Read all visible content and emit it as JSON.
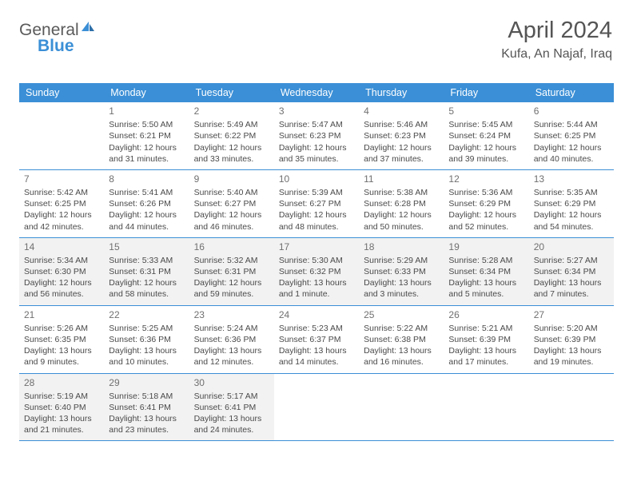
{
  "logo": {
    "text1": "General",
    "text2": "Blue"
  },
  "title": "April 2024",
  "location": "Kufa, An Najaf, Iraq",
  "colors": {
    "accent": "#3B8FD6",
    "shade": "#f2f2f2",
    "text": "#4a4a4a",
    "daynum": "#707070",
    "background": "#ffffff"
  },
  "fonts": {
    "title_size_pt": 22,
    "location_size_pt": 12,
    "header_size_pt": 9,
    "body_size_pt": 8,
    "daynum_size_pt": 9
  },
  "weekdays": [
    "Sunday",
    "Monday",
    "Tuesday",
    "Wednesday",
    "Thursday",
    "Friday",
    "Saturday"
  ],
  "days": {
    "1": {
      "sunrise": "Sunrise: 5:50 AM",
      "sunset": "Sunset: 6:21 PM",
      "daylight": "Daylight: 12 hours and 31 minutes."
    },
    "2": {
      "sunrise": "Sunrise: 5:49 AM",
      "sunset": "Sunset: 6:22 PM",
      "daylight": "Daylight: 12 hours and 33 minutes."
    },
    "3": {
      "sunrise": "Sunrise: 5:47 AM",
      "sunset": "Sunset: 6:23 PM",
      "daylight": "Daylight: 12 hours and 35 minutes."
    },
    "4": {
      "sunrise": "Sunrise: 5:46 AM",
      "sunset": "Sunset: 6:23 PM",
      "daylight": "Daylight: 12 hours and 37 minutes."
    },
    "5": {
      "sunrise": "Sunrise: 5:45 AM",
      "sunset": "Sunset: 6:24 PM",
      "daylight": "Daylight: 12 hours and 39 minutes."
    },
    "6": {
      "sunrise": "Sunrise: 5:44 AM",
      "sunset": "Sunset: 6:25 PM",
      "daylight": "Daylight: 12 hours and 40 minutes."
    },
    "7": {
      "sunrise": "Sunrise: 5:42 AM",
      "sunset": "Sunset: 6:25 PM",
      "daylight": "Daylight: 12 hours and 42 minutes."
    },
    "8": {
      "sunrise": "Sunrise: 5:41 AM",
      "sunset": "Sunset: 6:26 PM",
      "daylight": "Daylight: 12 hours and 44 minutes."
    },
    "9": {
      "sunrise": "Sunrise: 5:40 AM",
      "sunset": "Sunset: 6:27 PM",
      "daylight": "Daylight: 12 hours and 46 minutes."
    },
    "10": {
      "sunrise": "Sunrise: 5:39 AM",
      "sunset": "Sunset: 6:27 PM",
      "daylight": "Daylight: 12 hours and 48 minutes."
    },
    "11": {
      "sunrise": "Sunrise: 5:38 AM",
      "sunset": "Sunset: 6:28 PM",
      "daylight": "Daylight: 12 hours and 50 minutes."
    },
    "12": {
      "sunrise": "Sunrise: 5:36 AM",
      "sunset": "Sunset: 6:29 PM",
      "daylight": "Daylight: 12 hours and 52 minutes."
    },
    "13": {
      "sunrise": "Sunrise: 5:35 AM",
      "sunset": "Sunset: 6:29 PM",
      "daylight": "Daylight: 12 hours and 54 minutes."
    },
    "14": {
      "sunrise": "Sunrise: 5:34 AM",
      "sunset": "Sunset: 6:30 PM",
      "daylight": "Daylight: 12 hours and 56 minutes."
    },
    "15": {
      "sunrise": "Sunrise: 5:33 AM",
      "sunset": "Sunset: 6:31 PM",
      "daylight": "Daylight: 12 hours and 58 minutes."
    },
    "16": {
      "sunrise": "Sunrise: 5:32 AM",
      "sunset": "Sunset: 6:31 PM",
      "daylight": "Daylight: 12 hours and 59 minutes."
    },
    "17": {
      "sunrise": "Sunrise: 5:30 AM",
      "sunset": "Sunset: 6:32 PM",
      "daylight": "Daylight: 13 hours and 1 minute."
    },
    "18": {
      "sunrise": "Sunrise: 5:29 AM",
      "sunset": "Sunset: 6:33 PM",
      "daylight": "Daylight: 13 hours and 3 minutes."
    },
    "19": {
      "sunrise": "Sunrise: 5:28 AM",
      "sunset": "Sunset: 6:34 PM",
      "daylight": "Daylight: 13 hours and 5 minutes."
    },
    "20": {
      "sunrise": "Sunrise: 5:27 AM",
      "sunset": "Sunset: 6:34 PM",
      "daylight": "Daylight: 13 hours and 7 minutes."
    },
    "21": {
      "sunrise": "Sunrise: 5:26 AM",
      "sunset": "Sunset: 6:35 PM",
      "daylight": "Daylight: 13 hours and 9 minutes."
    },
    "22": {
      "sunrise": "Sunrise: 5:25 AM",
      "sunset": "Sunset: 6:36 PM",
      "daylight": "Daylight: 13 hours and 10 minutes."
    },
    "23": {
      "sunrise": "Sunrise: 5:24 AM",
      "sunset": "Sunset: 6:36 PM",
      "daylight": "Daylight: 13 hours and 12 minutes."
    },
    "24": {
      "sunrise": "Sunrise: 5:23 AM",
      "sunset": "Sunset: 6:37 PM",
      "daylight": "Daylight: 13 hours and 14 minutes."
    },
    "25": {
      "sunrise": "Sunrise: 5:22 AM",
      "sunset": "Sunset: 6:38 PM",
      "daylight": "Daylight: 13 hours and 16 minutes."
    },
    "26": {
      "sunrise": "Sunrise: 5:21 AM",
      "sunset": "Sunset: 6:39 PM",
      "daylight": "Daylight: 13 hours and 17 minutes."
    },
    "27": {
      "sunrise": "Sunrise: 5:20 AM",
      "sunset": "Sunset: 6:39 PM",
      "daylight": "Daylight: 13 hours and 19 minutes."
    },
    "28": {
      "sunrise": "Sunrise: 5:19 AM",
      "sunset": "Sunset: 6:40 PM",
      "daylight": "Daylight: 13 hours and 21 minutes."
    },
    "29": {
      "sunrise": "Sunrise: 5:18 AM",
      "sunset": "Sunset: 6:41 PM",
      "daylight": "Daylight: 13 hours and 23 minutes."
    },
    "30": {
      "sunrise": "Sunrise: 5:17 AM",
      "sunset": "Sunset: 6:41 PM",
      "daylight": "Daylight: 13 hours and 24 minutes."
    }
  },
  "layout": {
    "first_weekday_offset": 1,
    "num_days": 30,
    "shaded_rows": [
      2,
      4
    ]
  }
}
